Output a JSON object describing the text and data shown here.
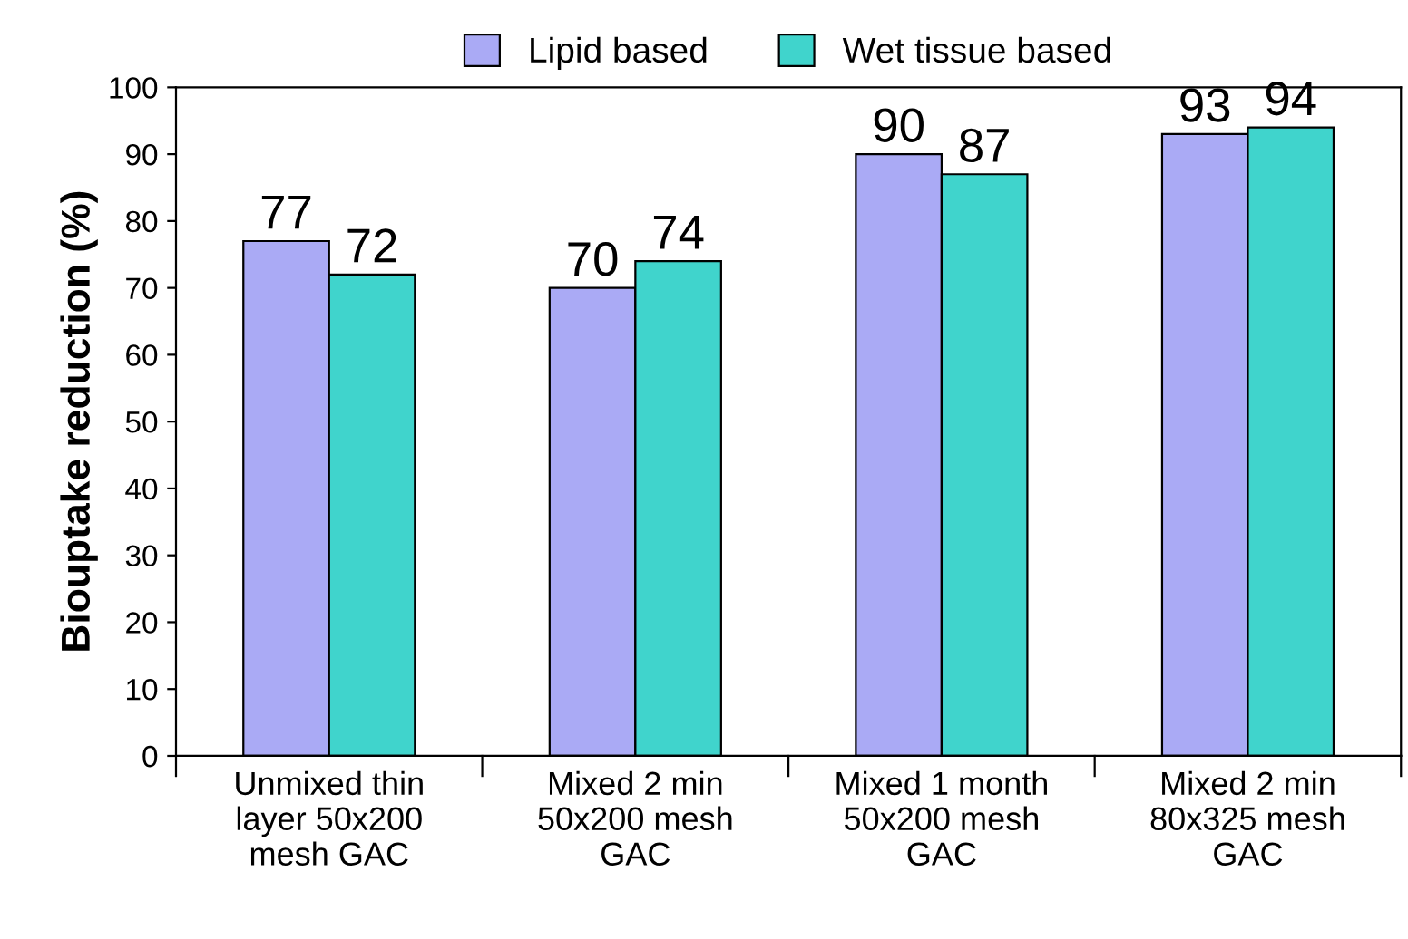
{
  "chart_data": {
    "type": "bar",
    "ylabel": "Biouptake reduction (%)",
    "categories": [
      "Unmixed thin\nlayer 50x200\nmesh GAC",
      "Mixed 2 min\n50x200 mesh\nGAC",
      "Mixed 1 month\n50x200 mesh\nGAC",
      "Mixed 2 min\n80x325 mesh\nGAC"
    ],
    "series": [
      {
        "name": "Lipid based",
        "color": "#aaaaf5",
        "values": [
          77,
          70,
          90,
          93
        ]
      },
      {
        "name": "Wet tissue based",
        "color": "#40d4cc",
        "values": [
          72,
          74,
          87,
          94
        ]
      }
    ],
    "ylim": [
      0,
      100
    ],
    "yticks": [
      0,
      10,
      20,
      30,
      40,
      50,
      60,
      70,
      80,
      90,
      100
    ],
    "data_labels": true,
    "legend": "top",
    "grid": false
  }
}
